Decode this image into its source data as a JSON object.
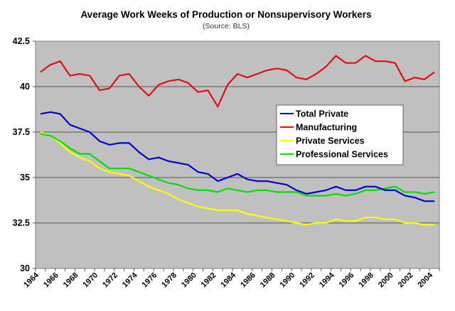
{
  "chart_data": {
    "type": "line",
    "title": "Average Work Weeks of Production or Nonsupervisory Workers",
    "subtitle": "(Source: BLS)",
    "xlabel": "",
    "ylabel": "",
    "ylim": [
      30,
      42.5
    ],
    "yticks": [
      "42.5",
      "40",
      "37.5",
      "35",
      "32.5",
      "30"
    ],
    "ytick_values": [
      42.5,
      40,
      37.5,
      35,
      32.5,
      30
    ],
    "grid": true,
    "legend_position": "center-right",
    "x": [
      1964,
      1965,
      1966,
      1967,
      1968,
      1969,
      1970,
      1971,
      1972,
      1973,
      1974,
      1975,
      1976,
      1977,
      1978,
      1979,
      1980,
      1981,
      1982,
      1983,
      1984,
      1985,
      1986,
      1987,
      1988,
      1989,
      1990,
      1991,
      1992,
      1993,
      1994,
      1995,
      1996,
      1997,
      1998,
      1999,
      2000,
      2001,
      2002,
      2003,
      2004
    ],
    "xticks": [
      "1964",
      "1966",
      "1968",
      "1970",
      "1972",
      "1974",
      "1976",
      "1978",
      "1980",
      "1982",
      "1984",
      "1986",
      "1988",
      "1990",
      "1992",
      "1994",
      "1996",
      "1998",
      "2000",
      "2002",
      "2004"
    ],
    "series": [
      {
        "name": "Total Private",
        "color": "#0000cc",
        "values": [
          38.5,
          38.6,
          38.5,
          37.9,
          37.7,
          37.5,
          37.0,
          36.8,
          36.9,
          36.9,
          36.4,
          36.0,
          36.1,
          35.9,
          35.8,
          35.7,
          35.3,
          35.2,
          34.8,
          35.0,
          35.2,
          34.9,
          34.8,
          34.8,
          34.7,
          34.6,
          34.3,
          34.1,
          34.2,
          34.3,
          34.5,
          34.3,
          34.3,
          34.5,
          34.5,
          34.3,
          34.3,
          34.0,
          33.9,
          33.7,
          33.7
        ]
      },
      {
        "name": "Manufacturing",
        "color": "#e01010",
        "values": [
          40.8,
          41.2,
          41.4,
          40.6,
          40.7,
          40.6,
          39.8,
          39.9,
          40.6,
          40.7,
          40.0,
          39.5,
          40.1,
          40.3,
          40.4,
          40.2,
          39.7,
          39.8,
          38.9,
          40.1,
          40.7,
          40.5,
          40.7,
          40.9,
          41.0,
          40.9,
          40.5,
          40.4,
          40.7,
          41.1,
          41.7,
          41.3,
          41.3,
          41.7,
          41.4,
          41.4,
          41.3,
          40.3,
          40.5,
          40.4,
          40.8
        ]
      },
      {
        "name": "Private Services",
        "color": "#ffff00",
        "values": [
          37.5,
          37.3,
          36.9,
          36.4,
          36.1,
          35.9,
          35.5,
          35.3,
          35.2,
          35.1,
          34.8,
          34.5,
          34.3,
          34.1,
          33.8,
          33.6,
          33.4,
          33.3,
          33.2,
          33.2,
          33.2,
          33.0,
          32.9,
          32.8,
          32.7,
          32.6,
          32.5,
          32.4,
          32.5,
          32.5,
          32.7,
          32.6,
          32.6,
          32.8,
          32.8,
          32.7,
          32.7,
          32.5,
          32.5,
          32.4,
          32.4
        ]
      },
      {
        "name": "Professional Services",
        "color": "#00dd00",
        "values": [
          37.4,
          37.3,
          37.0,
          36.6,
          36.3,
          36.3,
          35.9,
          35.5,
          35.5,
          35.5,
          35.3,
          35.1,
          34.9,
          34.7,
          34.6,
          34.4,
          34.3,
          34.3,
          34.2,
          34.4,
          34.3,
          34.2,
          34.3,
          34.3,
          34.2,
          34.2,
          34.2,
          34.0,
          34.0,
          34.0,
          34.1,
          34.0,
          34.1,
          34.3,
          34.3,
          34.4,
          34.5,
          34.2,
          34.2,
          34.1,
          34.2
        ]
      }
    ]
  }
}
